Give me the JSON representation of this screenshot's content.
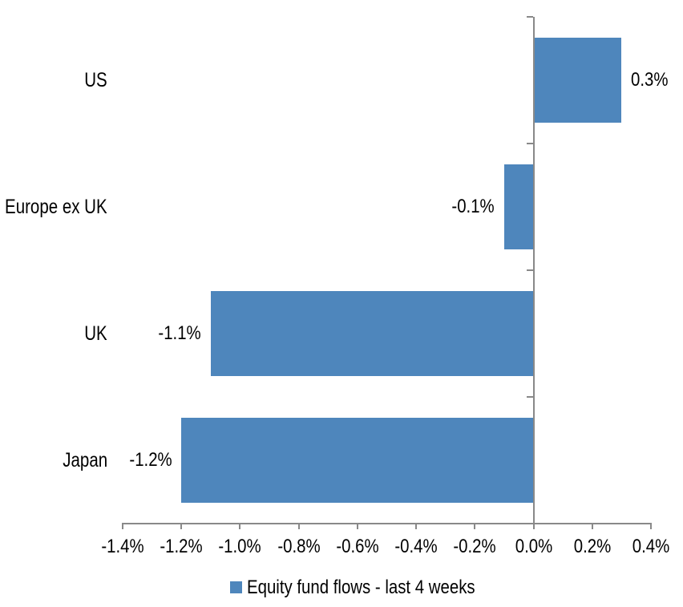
{
  "chart_data": {
    "type": "bar",
    "orientation": "horizontal",
    "categories": [
      "US",
      "Europe ex UK",
      "UK",
      "Japan"
    ],
    "values": [
      0.3,
      -0.1,
      -1.1,
      -1.2
    ],
    "data_labels": [
      "0.3%",
      "-0.1%",
      "-1.1%",
      "-1.2%"
    ],
    "series": [
      {
        "name": "Equity fund flows - last 4 weeks",
        "values": [
          0.3,
          -0.1,
          -1.1,
          -1.2
        ]
      }
    ],
    "legend": {
      "label": "Equity fund flows - last 4 weeks",
      "position": "bottom-center",
      "swatch": "square"
    },
    "x_axis": {
      "min": -1.4,
      "max": 0.4,
      "tick_step": 0.2,
      "tick_labels": [
        "-1.4%",
        "-1.2%",
        "-1.0%",
        "-0.8%",
        "-0.6%",
        "-0.4%",
        "-0.2%",
        "0.0%",
        "0.2%",
        "0.4%"
      ],
      "unit": "percent"
    },
    "y_axis": {
      "zero_line": true,
      "category_boundary_ticks": true
    },
    "grid": false,
    "title": "",
    "colors": {
      "bar": "#4E86BC",
      "axis": "#898989",
      "text": "#000000",
      "background": "#FFFFFF"
    }
  }
}
